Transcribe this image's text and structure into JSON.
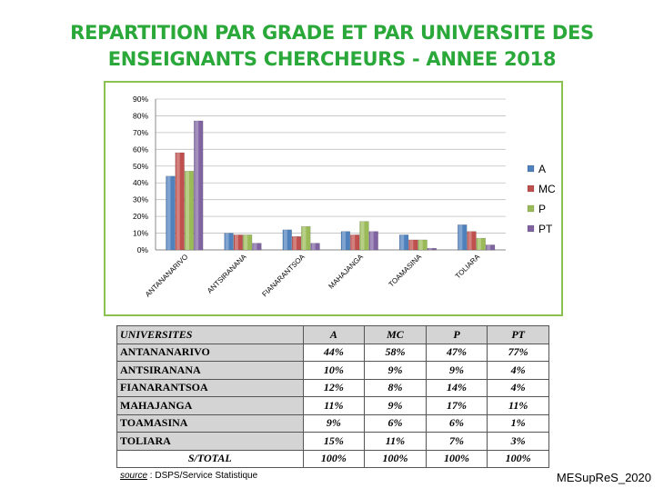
{
  "title_line1": "REPARTITION PAR GRADE ET PAR UNIVERSITE DES",
  "title_line2": "ENSEIGNANTS CHERCHEURS - ANNEE 2018",
  "chart_data": {
    "type": "bar",
    "categories": [
      "ANTANANARIVO",
      "ANTSIRANANA",
      "FIANARANTSOA",
      "MAHAJANGA",
      "TOAMASINA",
      "TOLIARA"
    ],
    "series": [
      {
        "name": "A",
        "values": [
          44,
          10,
          12,
          11,
          9,
          15
        ],
        "color": "#4f81bd"
      },
      {
        "name": "MC",
        "values": [
          58,
          9,
          8,
          9,
          6,
          11
        ],
        "color": "#c0504d"
      },
      {
        "name": "P",
        "values": [
          47,
          9,
          14,
          17,
          6,
          7
        ],
        "color": "#9bbb59"
      },
      {
        "name": "PT",
        "values": [
          77,
          4,
          4,
          11,
          1,
          3
        ],
        "color": "#8064a2"
      }
    ],
    "yticks": [
      "0%",
      "10%",
      "20%",
      "30%",
      "40%",
      "50%",
      "60%",
      "70%",
      "80%",
      "90%"
    ],
    "ylim": [
      0,
      90
    ],
    "legend_position": "right"
  },
  "table": {
    "headers": [
      "UNIVERSITES",
      "A",
      "MC",
      "P",
      "PT"
    ],
    "rows": [
      [
        "ANTANANARIVO",
        "44%",
        "58%",
        "47%",
        "77%"
      ],
      [
        "ANTSIRANANA",
        "10%",
        "9%",
        "9%",
        "4%"
      ],
      [
        "FIANARANTSOA",
        "12%",
        "8%",
        "14%",
        "4%"
      ],
      [
        "MAHAJANGA",
        "11%",
        "9%",
        "17%",
        "11%"
      ],
      [
        "TOAMASINA",
        "9%",
        "6%",
        "6%",
        "1%"
      ],
      [
        "TOLIARA",
        "15%",
        "11%",
        "7%",
        "3%"
      ]
    ],
    "total": [
      "S/TOTAL",
      "100%",
      "100%",
      "100%",
      "100%"
    ]
  },
  "source": {
    "label": "source",
    "text": " : DSPS/Service Statistique"
  },
  "footer": "MESupReS_2020"
}
